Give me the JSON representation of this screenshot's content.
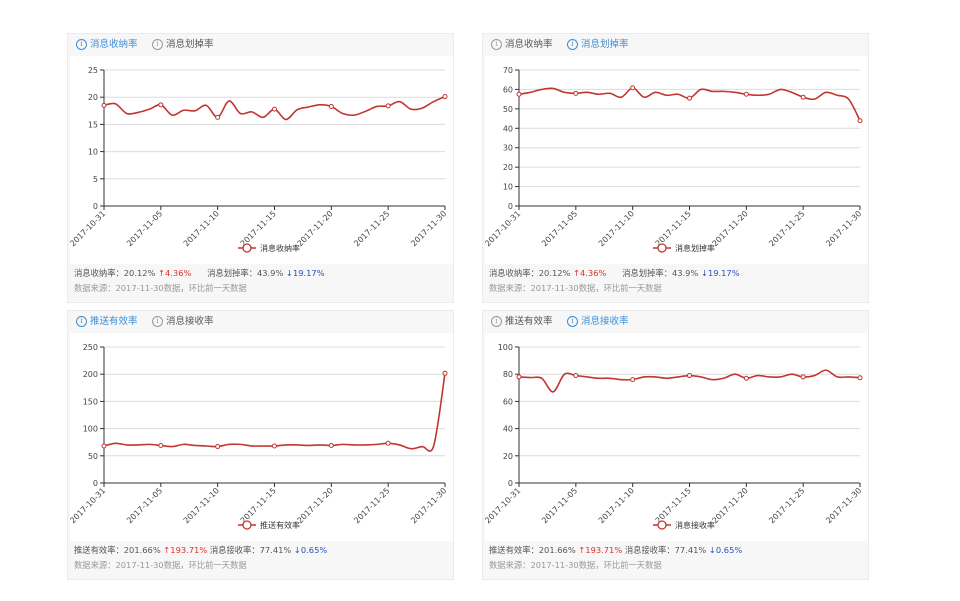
{
  "colors": {
    "accent": "#3c8dd6",
    "line": "#c23531",
    "up": "#e0312b",
    "down": "#2a4fbf"
  },
  "source_note": "数据来源：2017-11-30数据，环比前一天数据",
  "panels": [
    {
      "tabs": [
        {
          "label": "消息收纳率",
          "active": true
        },
        {
          "label": "消息划掉率",
          "active": false
        }
      ],
      "stats": {
        "a_label": "消息收纳率：20.12%",
        "a_change": "4.36%",
        "b_label": "消息划掉率：43.9%",
        "b_change": "19.17%"
      }
    },
    {
      "tabs": [
        {
          "label": "消息收纳率",
          "active": false
        },
        {
          "label": "消息划掉率",
          "active": true
        }
      ],
      "stats": {
        "a_label": "消息收纳率：20.12%",
        "a_change": "4.36%",
        "b_label": "消息划掉率：43.9%",
        "b_change": "19.17%"
      }
    },
    {
      "tabs": [
        {
          "label": "推送有效率",
          "active": true
        },
        {
          "label": "消息接收率",
          "active": false
        }
      ],
      "stats": {
        "a_label": "推送有效率：201.66%",
        "a_change": "193.71%",
        "b_label": "消息接收率：77.41%",
        "b_change": "0.65%"
      }
    },
    {
      "tabs": [
        {
          "label": "推送有效率",
          "active": false
        },
        {
          "label": "消息接收率",
          "active": true
        }
      ],
      "stats": {
        "a_label": "推送有效率：201.66%",
        "a_change": "193.71%",
        "b_label": "消息接收率：77.41%",
        "b_change": "0.65%"
      }
    }
  ],
  "chart_data": [
    {
      "type": "line",
      "x": [
        "2017-10-31",
        "2017-11-01",
        "2017-11-02",
        "2017-11-03",
        "2017-11-04",
        "2017-11-05",
        "2017-11-06",
        "2017-11-07",
        "2017-11-08",
        "2017-11-09",
        "2017-11-10",
        "2017-11-11",
        "2017-11-12",
        "2017-11-13",
        "2017-11-14",
        "2017-11-15",
        "2017-11-16",
        "2017-11-17",
        "2017-11-18",
        "2017-11-19",
        "2017-11-20",
        "2017-11-21",
        "2017-11-22",
        "2017-11-23",
        "2017-11-24",
        "2017-11-25",
        "2017-11-26",
        "2017-11-27",
        "2017-11-28",
        "2017-11-29",
        "2017-11-30"
      ],
      "xticks": [
        "2017-10-31",
        "2017-11-05",
        "2017-11-10",
        "2017-11-15",
        "2017-11-20",
        "2017-11-25",
        "2017-11-30"
      ],
      "series": [
        {
          "name": "消息收纳率",
          "values": [
            18.5,
            18.8,
            17.0,
            17.2,
            17.8,
            18.6,
            16.7,
            17.6,
            17.5,
            18.5,
            16.3,
            19.3,
            17.0,
            17.3,
            16.3,
            17.8,
            15.9,
            17.7,
            18.2,
            18.6,
            18.3,
            17.0,
            16.7,
            17.4,
            18.3,
            18.4,
            19.2,
            17.8,
            18.0,
            19.2,
            20.12
          ]
        }
      ],
      "ylim": [
        0,
        25
      ],
      "yticks": [
        0,
        5,
        10,
        15,
        20,
        25
      ]
    },
    {
      "type": "line",
      "x": [
        "2017-10-31",
        "2017-11-01",
        "2017-11-02",
        "2017-11-03",
        "2017-11-04",
        "2017-11-05",
        "2017-11-06",
        "2017-11-07",
        "2017-11-08",
        "2017-11-09",
        "2017-11-10",
        "2017-11-11",
        "2017-11-12",
        "2017-11-13",
        "2017-11-14",
        "2017-11-15",
        "2017-11-16",
        "2017-11-17",
        "2017-11-18",
        "2017-11-19",
        "2017-11-20",
        "2017-11-21",
        "2017-11-22",
        "2017-11-23",
        "2017-11-24",
        "2017-11-25",
        "2017-11-26",
        "2017-11-27",
        "2017-11-28",
        "2017-11-29",
        "2017-11-30"
      ],
      "xticks": [
        "2017-10-31",
        "2017-11-05",
        "2017-11-10",
        "2017-11-15",
        "2017-11-20",
        "2017-11-25",
        "2017-11-30"
      ],
      "series": [
        {
          "name": "消息划掉率",
          "values": [
            57.5,
            58.5,
            60.0,
            60.5,
            58.5,
            58.0,
            58.5,
            57.5,
            58.0,
            56.0,
            60.8,
            56.0,
            58.5,
            57.0,
            57.5,
            55.5,
            60.0,
            59.0,
            59.0,
            58.5,
            57.5,
            57.0,
            57.5,
            60.0,
            58.5,
            56.0,
            55.0,
            58.5,
            57.0,
            55.0,
            43.9
          ]
        }
      ],
      "ylim": [
        0,
        70
      ],
      "yticks": [
        0,
        10,
        20,
        30,
        40,
        50,
        60,
        70
      ]
    },
    {
      "type": "line",
      "x": [
        "2017-10-31",
        "2017-11-01",
        "2017-11-02",
        "2017-11-03",
        "2017-11-04",
        "2017-11-05",
        "2017-11-06",
        "2017-11-07",
        "2017-11-08",
        "2017-11-09",
        "2017-11-10",
        "2017-11-11",
        "2017-11-12",
        "2017-11-13",
        "2017-11-14",
        "2017-11-15",
        "2017-11-16",
        "2017-11-17",
        "2017-11-18",
        "2017-11-19",
        "2017-11-20",
        "2017-11-21",
        "2017-11-22",
        "2017-11-23",
        "2017-11-24",
        "2017-11-25",
        "2017-11-26",
        "2017-11-27",
        "2017-11-28",
        "2017-11-29",
        "2017-11-30"
      ],
      "xticks": [
        "2017-10-31",
        "2017-11-05",
        "2017-11-10",
        "2017-11-15",
        "2017-11-20",
        "2017-11-25",
        "2017-11-30"
      ],
      "series": [
        {
          "name": "推送有效率",
          "values": [
            68,
            73,
            70,
            70,
            71,
            69,
            67,
            71,
            69,
            68,
            67,
            71,
            71,
            68,
            68,
            68,
            70,
            70,
            69,
            70,
            69,
            71,
            70,
            70,
            71,
            73,
            70,
            63,
            67,
            68,
            201.66
          ]
        }
      ],
      "ylim": [
        0,
        250
      ],
      "yticks": [
        0,
        50,
        100,
        150,
        200,
        250
      ]
    },
    {
      "type": "line",
      "x": [
        "2017-10-31",
        "2017-11-01",
        "2017-11-02",
        "2017-11-03",
        "2017-11-04",
        "2017-11-05",
        "2017-11-06",
        "2017-11-07",
        "2017-11-08",
        "2017-11-09",
        "2017-11-10",
        "2017-11-11",
        "2017-11-12",
        "2017-11-13",
        "2017-11-14",
        "2017-11-15",
        "2017-11-16",
        "2017-11-17",
        "2017-11-18",
        "2017-11-19",
        "2017-11-20",
        "2017-11-21",
        "2017-11-22",
        "2017-11-23",
        "2017-11-24",
        "2017-11-25",
        "2017-11-26",
        "2017-11-27",
        "2017-11-28",
        "2017-11-29",
        "2017-11-30"
      ],
      "xticks": [
        "2017-10-31",
        "2017-11-05",
        "2017-11-10",
        "2017-11-15",
        "2017-11-20",
        "2017-11-25",
        "2017-11-30"
      ],
      "series": [
        {
          "name": "消息接收率",
          "values": [
            78,
            77.5,
            77,
            67,
            80,
            79,
            78,
            77,
            77,
            76,
            76,
            78,
            78,
            77,
            78,
            79,
            78,
            76,
            77,
            80,
            77,
            79,
            78,
            78,
            80,
            78,
            79,
            83,
            78,
            78,
            77.41
          ]
        }
      ],
      "ylim": [
        0,
        100
      ],
      "yticks": [
        0,
        20,
        40,
        60,
        80,
        100
      ]
    }
  ]
}
